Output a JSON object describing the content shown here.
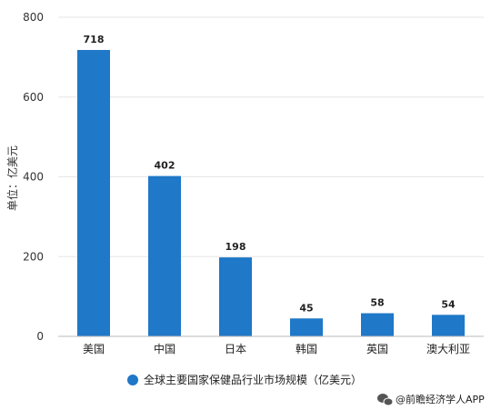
{
  "chart_data": {
    "type": "bar",
    "title": "",
    "xlabel": "",
    "ylabel": "单位：亿美元",
    "categories": [
      "美国",
      "中国",
      "日本",
      "韩国",
      "英国",
      "澳大利亚"
    ],
    "series": [
      {
        "name": "全球主要国家保健品行业市场规模（亿美元）",
        "values": [
          718,
          402,
          198,
          45,
          58,
          54
        ]
      }
    ],
    "ylim": [
      0,
      800
    ],
    "yticks": [
      0,
      200,
      400,
      600,
      800
    ],
    "grid": true,
    "legend_position": "bottom",
    "data_labels": true,
    "bar_color": "#1f78c8"
  },
  "credit": {
    "icon": "wechat-icon",
    "text": "@前瞻经济学人APP"
  }
}
